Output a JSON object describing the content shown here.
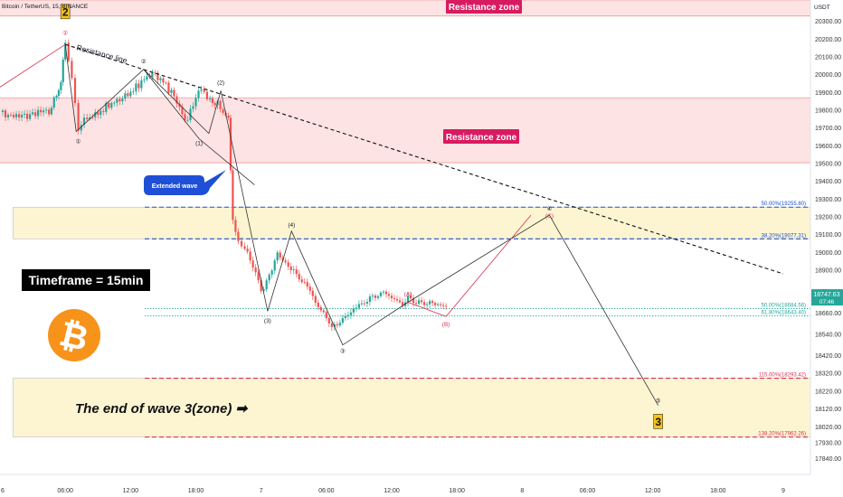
{
  "chart_data": {
    "type": "candlestick",
    "title": "Bitcoin / TetherUS, 15, BINANCE",
    "currency": "USDT",
    "x_axis": {
      "ticks": [
        {
          "label": "6",
          "t": 0
        },
        {
          "label": "06:00",
          "t": 6
        },
        {
          "label": "12:00",
          "t": 12
        },
        {
          "label": "18:00",
          "t": 18
        },
        {
          "label": "7",
          "t": 24
        },
        {
          "label": "06:00",
          "t": 30
        },
        {
          "label": "12:00",
          "t": 36
        },
        {
          "label": "18:00",
          "t": 42
        },
        {
          "label": "8",
          "t": 48
        },
        {
          "label": "06:00",
          "t": 54
        },
        {
          "label": "12:00",
          "t": 60
        },
        {
          "label": "18:00",
          "t": 66
        },
        {
          "label": "9",
          "t": 72
        }
      ]
    },
    "y_axis": {
      "range": [
        17752,
        20420
      ],
      "ticks": [
        17840,
        17930,
        18020,
        18120,
        18220,
        18320,
        18420,
        18540,
        18660,
        18780,
        18900,
        19000,
        19100,
        19200,
        19300,
        19400,
        19500,
        19600,
        19700,
        19800,
        19900,
        20000,
        20100,
        20200,
        20300
      ]
    },
    "last_price": {
      "value": "18747.63",
      "countdown": "07:46",
      "color": "#26a69a"
    },
    "close_series": {
      "t": [
        0,
        1.5,
        3,
        4.5,
        5.2,
        5.6,
        6.0,
        6.6,
        7.2,
        8,
        9,
        10,
        11,
        12,
        13,
        14,
        15,
        16,
        16.5,
        17,
        18,
        18.5,
        19.3,
        20,
        20.5,
        21,
        21.4,
        21.9,
        22.5,
        23,
        23.5,
        24,
        25,
        25.5,
        26,
        26.5,
        27,
        27.5,
        28,
        28.5,
        29,
        29.5,
        30,
        30.5,
        31,
        31.5,
        32,
        32.5,
        33,
        33.5,
        34,
        34.5,
        35,
        35.5,
        36,
        36.5,
        37,
        37.5,
        38,
        38.5,
        39,
        39.5,
        40,
        40.5,
        41
      ],
      "close": [
        19790,
        19760,
        19780,
        19800,
        19880,
        19950,
        20180,
        19960,
        19700,
        19760,
        19780,
        19830,
        19860,
        19900,
        19960,
        20010,
        19960,
        19880,
        19810,
        19730,
        19860,
        19920,
        19860,
        19830,
        19800,
        19770,
        19180,
        19080,
        19020,
        18950,
        18870,
        18780,
        18900,
        19020,
        18960,
        18940,
        18900,
        18850,
        18820,
        18770,
        18710,
        18660,
        18640,
        18580,
        18610,
        18640,
        18660,
        18690,
        18700,
        18710,
        18730,
        18740,
        18760,
        18770,
        18750,
        18740,
        18720,
        18760,
        18730,
        18720,
        18700,
        18710,
        18690,
        18700,
        18690
      ]
    },
    "resistance_zones": [
      {
        "label": "Resistance zone",
        "low": 20330,
        "high": 20420
      },
      {
        "label": "Resistance zone",
        "low": 19505,
        "high": 19870
      }
    ],
    "demand_zones": [
      {
        "from_t": 1.2,
        "to_t": 72,
        "low": 19077,
        "high": 19255
      },
      {
        "from_t": 1.2,
        "to_t": 72,
        "low": 17962,
        "high": 18293
      }
    ],
    "fib_levels": [
      {
        "label": "50.00%(19255.80)",
        "price": 19255,
        "color": "#1e50c8",
        "style": "dashed"
      },
      {
        "label": "38.20%(19077.31)",
        "price": 19077,
        "color": "#1e50c8",
        "style": "dashed"
      },
      {
        "label": "50.00%(18684.56)",
        "price": 18684,
        "color": "#26a69a",
        "style": "dotted"
      },
      {
        "label": "61.80%(18643.40)",
        "price": 18643,
        "color": "#26a69a",
        "style": "dotted"
      },
      {
        "label": "115.00%(18293.42)",
        "price": 18293,
        "color": "#d8304e",
        "style": "dashed"
      },
      {
        "label": "138.20%(17962.26)",
        "price": 17962,
        "color": "#d8304e",
        "style": "dashed"
      }
    ],
    "resistance_line": {
      "label": "Resistance line",
      "from": [
        6.0,
        20170
      ],
      "to": [
        72,
        18880
      ]
    },
    "wave_paths": [
      {
        "color": "#333333",
        "points": [
          [
            6.0,
            20170
          ],
          [
            7.0,
            19680
          ],
          [
            13.2,
            20030
          ],
          [
            19.2,
            19670
          ],
          [
            20.3,
            19910
          ],
          [
            24.6,
            18670
          ],
          [
            26.8,
            19120
          ],
          [
            31.5,
            18480
          ],
          [
            37.5,
            18720
          ],
          [
            50.5,
            19210
          ],
          [
            60.5,
            18140
          ]
        ]
      },
      {
        "color": "#333333",
        "points": [
          [
            13.2,
            20030
          ],
          [
            18.3,
            19640
          ],
          [
            18.3,
            19640
          ],
          [
            23.4,
            19380
          ]
        ]
      },
      {
        "color": "#d8304e",
        "points": [
          [
            0,
            19930
          ],
          [
            6.0,
            20170
          ]
        ]
      },
      {
        "color": "#d8304e",
        "points": [
          [
            37.5,
            18720
          ],
          [
            41.0,
            18640
          ],
          [
            48.8,
            19210
          ]
        ]
      }
    ],
    "wave_labels": [
      {
        "label": "2",
        "t": 6.0,
        "price": 20355,
        "kind": "box"
      },
      {
        "label": "②",
        "t": 6.0,
        "price": 20240,
        "kind": "circle-red"
      },
      {
        "label": "①",
        "t": 7.2,
        "price": 19630,
        "kind": "circle"
      },
      {
        "label": "②",
        "t": 13.2,
        "price": 20080,
        "kind": "circle"
      },
      {
        "label": "(1)",
        "t": 18.3,
        "price": 19620,
        "kind": "plain"
      },
      {
        "label": "(2)",
        "t": 20.3,
        "price": 19960,
        "kind": "plain"
      },
      {
        "label": "(3)",
        "t": 24.6,
        "price": 18620,
        "kind": "plain"
      },
      {
        "label": "(4)",
        "t": 26.8,
        "price": 19160,
        "kind": "plain"
      },
      {
        "label": "③",
        "t": 31.5,
        "price": 18450,
        "kind": "circle"
      },
      {
        "label": "(A)",
        "t": 37.5,
        "price": 18770,
        "kind": "red"
      },
      {
        "label": "(B)",
        "t": 41.0,
        "price": 18600,
        "kind": "red"
      },
      {
        "label": "④",
        "t": 50.5,
        "price": 19250,
        "kind": "circle"
      },
      {
        "label": "(C)",
        "t": 50.5,
        "price": 19210,
        "kind": "red-small"
      },
      {
        "label": "⑤",
        "t": 60.5,
        "price": 18170,
        "kind": "circle"
      },
      {
        "label": "3",
        "t": 60.5,
        "price": 18050,
        "kind": "box"
      }
    ]
  },
  "annotations": {
    "header": "Bitcoin / TetherUS, 15, BINANCE",
    "currency": "USDT",
    "resistance_zone_top": "Resistance zone",
    "resistance_zone_mid": "Resistance zone",
    "resistance_line_label": "Resistance line",
    "extended_wave_callout": "Extended wave",
    "timeframe_label": "Timeframe = 15min",
    "end_wave_text": "The end of wave 3(zone) ➡",
    "bitcoin_logo_glyph": "₿"
  },
  "colors": {
    "up": "#26a69a",
    "down": "#ef5350",
    "resistance_fill": "#fde3e3",
    "zone_fill": "#fdf5d2",
    "callout_blue": "#1e4fd6",
    "label_red": "#d81b60",
    "bitcoin_orange": "#f7931a"
  }
}
